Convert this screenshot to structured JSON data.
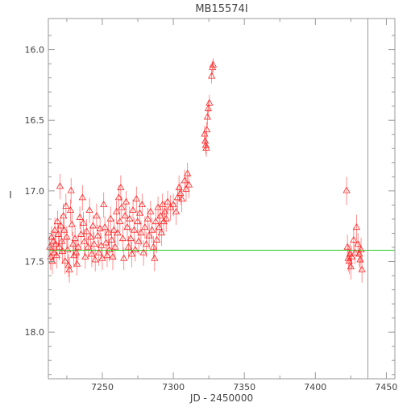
{
  "chart_data": {
    "type": "scatter",
    "title": "MB15574I",
    "xlabel": "JD - 2450000",
    "ylabel": "I",
    "xlim": [
      7212,
      7456
    ],
    "ylim": [
      18.33,
      15.78
    ],
    "y_inverted": true,
    "grid": false,
    "x_ticks": [
      7250,
      7300,
      7350,
      7400,
      7450
    ],
    "x_tick_labels": [
      "7250",
      "7300",
      "7350",
      "7400",
      "7450"
    ],
    "y_ticks": [
      16.0,
      16.5,
      17.0,
      17.5,
      18.0
    ],
    "y_tick_labels": [
      "16.0",
      "16.5",
      "17.0",
      "17.5",
      "18.0"
    ],
    "marker": "triangle-open",
    "colors": {
      "points": "#ff2020",
      "errorbars": "#ff6060",
      "baseline": "#22cc22",
      "vline": "#999999",
      "frame": "#999999"
    },
    "baseline_mag": 17.42,
    "vline_x": 7437,
    "series": [
      {
        "points": [
          [
            7213,
            17.4,
            0.08
          ],
          [
            7213.6,
            17.47,
            0.09
          ],
          [
            7214.2,
            17.33,
            0.08
          ],
          [
            7214.8,
            17.5,
            0.09
          ],
          [
            7215.4,
            17.36,
            0.08
          ],
          [
            7216,
            17.44,
            0.08
          ],
          [
            7216.6,
            17.28,
            0.09
          ],
          [
            7217.2,
            17.38,
            0.08
          ],
          [
            7217.8,
            17.46,
            0.09
          ],
          [
            7218.4,
            17.22,
            0.08
          ],
          [
            7219,
            17.31,
            0.08
          ],
          [
            7219.6,
            17.4,
            0.09
          ],
          [
            7220.2,
            16.97,
            0.09
          ],
          [
            7220.8,
            17.25,
            0.08
          ],
          [
            7221.4,
            17.36,
            0.09
          ],
          [
            7222,
            17.43,
            0.08
          ],
          [
            7222.6,
            17.18,
            0.09
          ],
          [
            7223.2,
            17.28,
            0.08
          ],
          [
            7223.8,
            17.5,
            0.09
          ],
          [
            7224.4,
            17.11,
            0.09
          ],
          [
            7225,
            17.33,
            0.08
          ],
          [
            7225.6,
            17.42,
            0.09
          ],
          [
            7226.2,
            17.53,
            0.08
          ],
          [
            7226.8,
            17.56,
            0.09
          ],
          [
            7227.6,
            17.14,
            0.08
          ],
          [
            7228,
            17.0,
            0.09
          ],
          [
            7228.6,
            17.24,
            0.08
          ],
          [
            7229.4,
            17.38,
            0.09
          ],
          [
            7230,
            17.46,
            0.08
          ],
          [
            7230.8,
            17.34,
            0.08
          ],
          [
            7231.6,
            17.44,
            0.09
          ],
          [
            7232.2,
            17.52,
            0.08
          ],
          [
            7233,
            17.4,
            0.09
          ],
          [
            7234.2,
            17.19,
            0.08
          ],
          [
            7235,
            17.31,
            0.09
          ],
          [
            7236,
            17.05,
            0.09
          ],
          [
            7236.6,
            17.23,
            0.08
          ],
          [
            7237.4,
            17.36,
            0.09
          ],
          [
            7238,
            17.47,
            0.08
          ],
          [
            7239,
            17.29,
            0.09
          ],
          [
            7240,
            17.4,
            0.08
          ],
          [
            7241,
            17.14,
            0.09
          ],
          [
            7241.8,
            17.33,
            0.08
          ],
          [
            7242.6,
            17.45,
            0.09
          ],
          [
            7243.4,
            17.25,
            0.08
          ],
          [
            7244.2,
            17.38,
            0.09
          ],
          [
            7245,
            17.49,
            0.08
          ],
          [
            7246,
            17.18,
            0.09
          ],
          [
            7246.8,
            17.32,
            0.08
          ],
          [
            7247.6,
            17.44,
            0.09
          ],
          [
            7248.4,
            17.27,
            0.08
          ],
          [
            7249.2,
            17.39,
            0.09
          ],
          [
            7250,
            17.48,
            0.08
          ],
          [
            7251,
            17.1,
            0.09
          ],
          [
            7251.8,
            17.26,
            0.08
          ],
          [
            7252.6,
            17.37,
            0.09
          ],
          [
            7253.4,
            17.46,
            0.08
          ],
          [
            7254.2,
            17.3,
            0.09
          ],
          [
            7255,
            17.42,
            0.08
          ],
          [
            7255.8,
            17.2,
            0.09
          ],
          [
            7256.6,
            17.35,
            0.08
          ],
          [
            7257.4,
            17.47,
            0.09
          ],
          [
            7258.2,
            17.28,
            0.08
          ],
          [
            7259,
            17.4,
            0.09
          ],
          [
            7260,
            17.15,
            0.08
          ],
          [
            7260.8,
            17.3,
            0.09
          ],
          [
            7261.6,
            17.05,
            0.09
          ],
          [
            7262.4,
            17.22,
            0.08
          ],
          [
            7263,
            16.98,
            0.09
          ],
          [
            7263.6,
            17.12,
            0.08
          ],
          [
            7264.4,
            17.34,
            0.09
          ],
          [
            7265.2,
            17.48,
            0.08
          ],
          [
            7266,
            17.18,
            0.09
          ],
          [
            7266.8,
            17.08,
            0.08
          ],
          [
            7267.6,
            17.26,
            0.09
          ],
          [
            7268.4,
            17.4,
            0.08
          ],
          [
            7269.2,
            17.2,
            0.09
          ],
          [
            7270,
            17.34,
            0.08
          ],
          [
            7270.8,
            17.45,
            0.09
          ],
          [
            7271.6,
            17.14,
            0.08
          ],
          [
            7272.4,
            17.28,
            0.09
          ],
          [
            7273.2,
            17.42,
            0.08
          ],
          [
            7274,
            17.06,
            0.09
          ],
          [
            7274.8,
            17.22,
            0.08
          ],
          [
            7275.6,
            17.36,
            0.09
          ],
          [
            7276.4,
            17.16,
            0.08
          ],
          [
            7277.2,
            17.3,
            0.09
          ],
          [
            7278,
            17.1,
            0.08
          ],
          [
            7279,
            17.44,
            0.09
          ],
          [
            7280,
            17.26,
            0.08
          ],
          [
            7281,
            17.38,
            0.09
          ],
          [
            7282,
            17.2,
            0.08
          ],
          [
            7283,
            17.32,
            0.09
          ],
          [
            7284,
            17.15,
            0.08
          ],
          [
            7285,
            17.28,
            0.09
          ],
          [
            7286,
            17.4,
            0.08
          ],
          [
            7286.8,
            17.48,
            0.09
          ],
          [
            7287.6,
            17.22,
            0.08
          ],
          [
            7288.4,
            17.35,
            0.09
          ],
          [
            7289.2,
            17.12,
            0.08
          ],
          [
            7290,
            17.26,
            0.09
          ],
          [
            7290.8,
            17.18,
            0.08
          ],
          [
            7291.6,
            17.3,
            0.09
          ],
          [
            7292.4,
            17.1,
            0.08
          ],
          [
            7293.2,
            17.22,
            0.09
          ],
          [
            7294,
            17.15,
            0.08
          ],
          [
            7295,
            17.2,
            0.09
          ],
          [
            7296,
            17.08,
            0.08
          ],
          [
            7298,
            17.12,
            0.09
          ],
          [
            7300,
            17.1,
            0.08
          ],
          [
            7302,
            17.15,
            0.09
          ],
          [
            7303,
            17.05,
            0.08
          ],
          [
            7304,
            16.98,
            0.09
          ],
          [
            7305,
            17.02,
            0.08
          ],
          [
            7306,
            17.06,
            0.09
          ],
          [
            7308,
            16.93,
            0.08
          ],
          [
            7309,
            16.99,
            0.09
          ],
          [
            7310,
            16.88,
            0.08
          ],
          [
            7311,
            16.96,
            0.09
          ],
          [
            7322,
            16.6,
            0.06
          ],
          [
            7322.4,
            16.65,
            0.06
          ],
          [
            7322.8,
            16.68,
            0.06
          ],
          [
            7323.2,
            16.7,
            0.06
          ],
          [
            7323.6,
            16.57,
            0.06
          ],
          [
            7324,
            16.48,
            0.06
          ],
          [
            7324.6,
            16.42,
            0.06
          ],
          [
            7325.4,
            16.38,
            0.06
          ],
          [
            7327,
            16.19,
            0.05
          ],
          [
            7327.6,
            16.13,
            0.05
          ],
          [
            7328,
            16.11,
            0.05
          ],
          [
            7422,
            17.0,
            0.1
          ],
          [
            7422.6,
            17.4,
            0.09
          ],
          [
            7423.2,
            17.48,
            0.09
          ],
          [
            7423.8,
            17.5,
            0.09
          ],
          [
            7424.4,
            17.45,
            0.08
          ],
          [
            7425,
            17.54,
            0.09
          ],
          [
            7425.6,
            17.47,
            0.08
          ],
          [
            7427,
            17.35,
            0.09
          ],
          [
            7428,
            17.44,
            0.08
          ],
          [
            7429,
            17.26,
            0.09
          ],
          [
            7430,
            17.38,
            0.08
          ],
          [
            7431,
            17.45,
            0.09
          ],
          [
            7431.6,
            17.49,
            0.08
          ],
          [
            7432.2,
            17.42,
            0.09
          ],
          [
            7432.8,
            17.56,
            0.09
          ]
        ]
      }
    ]
  }
}
